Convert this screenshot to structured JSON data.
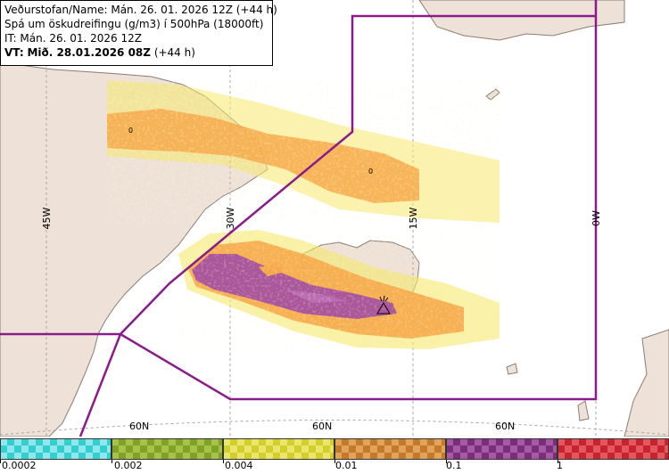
{
  "info": {
    "line1_label": "Veðurstofan/Name:",
    "line1_value": "Mán. 26. 01. 2026 12Z (+44 h)",
    "line2": "Spá um öskudreifingu (g/m3) í 500hPa (18000ft)",
    "line3": "IT: Mán. 26. 01. 2026 12Z",
    "line4_label": "VT:",
    "line4_value": "Mið. 28.01.2026 08Z",
    "line4_suffix": "(+44 h)"
  },
  "map": {
    "meridian_labels": [
      "45W",
      "30W",
      "15W",
      "0W"
    ],
    "parallel_labels": [
      "60N",
      "60N",
      "60N"
    ],
    "contour_labels": [
      "0",
      "0"
    ],
    "colors": {
      "land": "#eee2d8",
      "sea": "#ffffff",
      "coast": "#8a7c72",
      "grid": "#a8a8a8",
      "boundary": "#8b1a8b",
      "ash_low": "#f5e86a",
      "ash_mid": "#f6a94a",
      "ash_high": "#a34fa3",
      "ash_scatter": "#6ee3e3"
    }
  },
  "legend": {
    "bins": [
      {
        "color": "#36cfcf",
        "alt": "#8ee8ee"
      },
      {
        "color": "#7ea326",
        "alt": "#a8c24a"
      },
      {
        "color": "#d2cf2e",
        "alt": "#e9e66a"
      },
      {
        "color": "#c57a2a",
        "alt": "#e0a45a"
      },
      {
        "color": "#7a2e7a",
        "alt": "#a45aa4"
      },
      {
        "color": "#c8242f",
        "alt": "#e2585e"
      }
    ],
    "tick_labels": [
      "0.0002",
      "0.002",
      "0.004",
      "0.01",
      "0.1",
      "1"
    ]
  }
}
